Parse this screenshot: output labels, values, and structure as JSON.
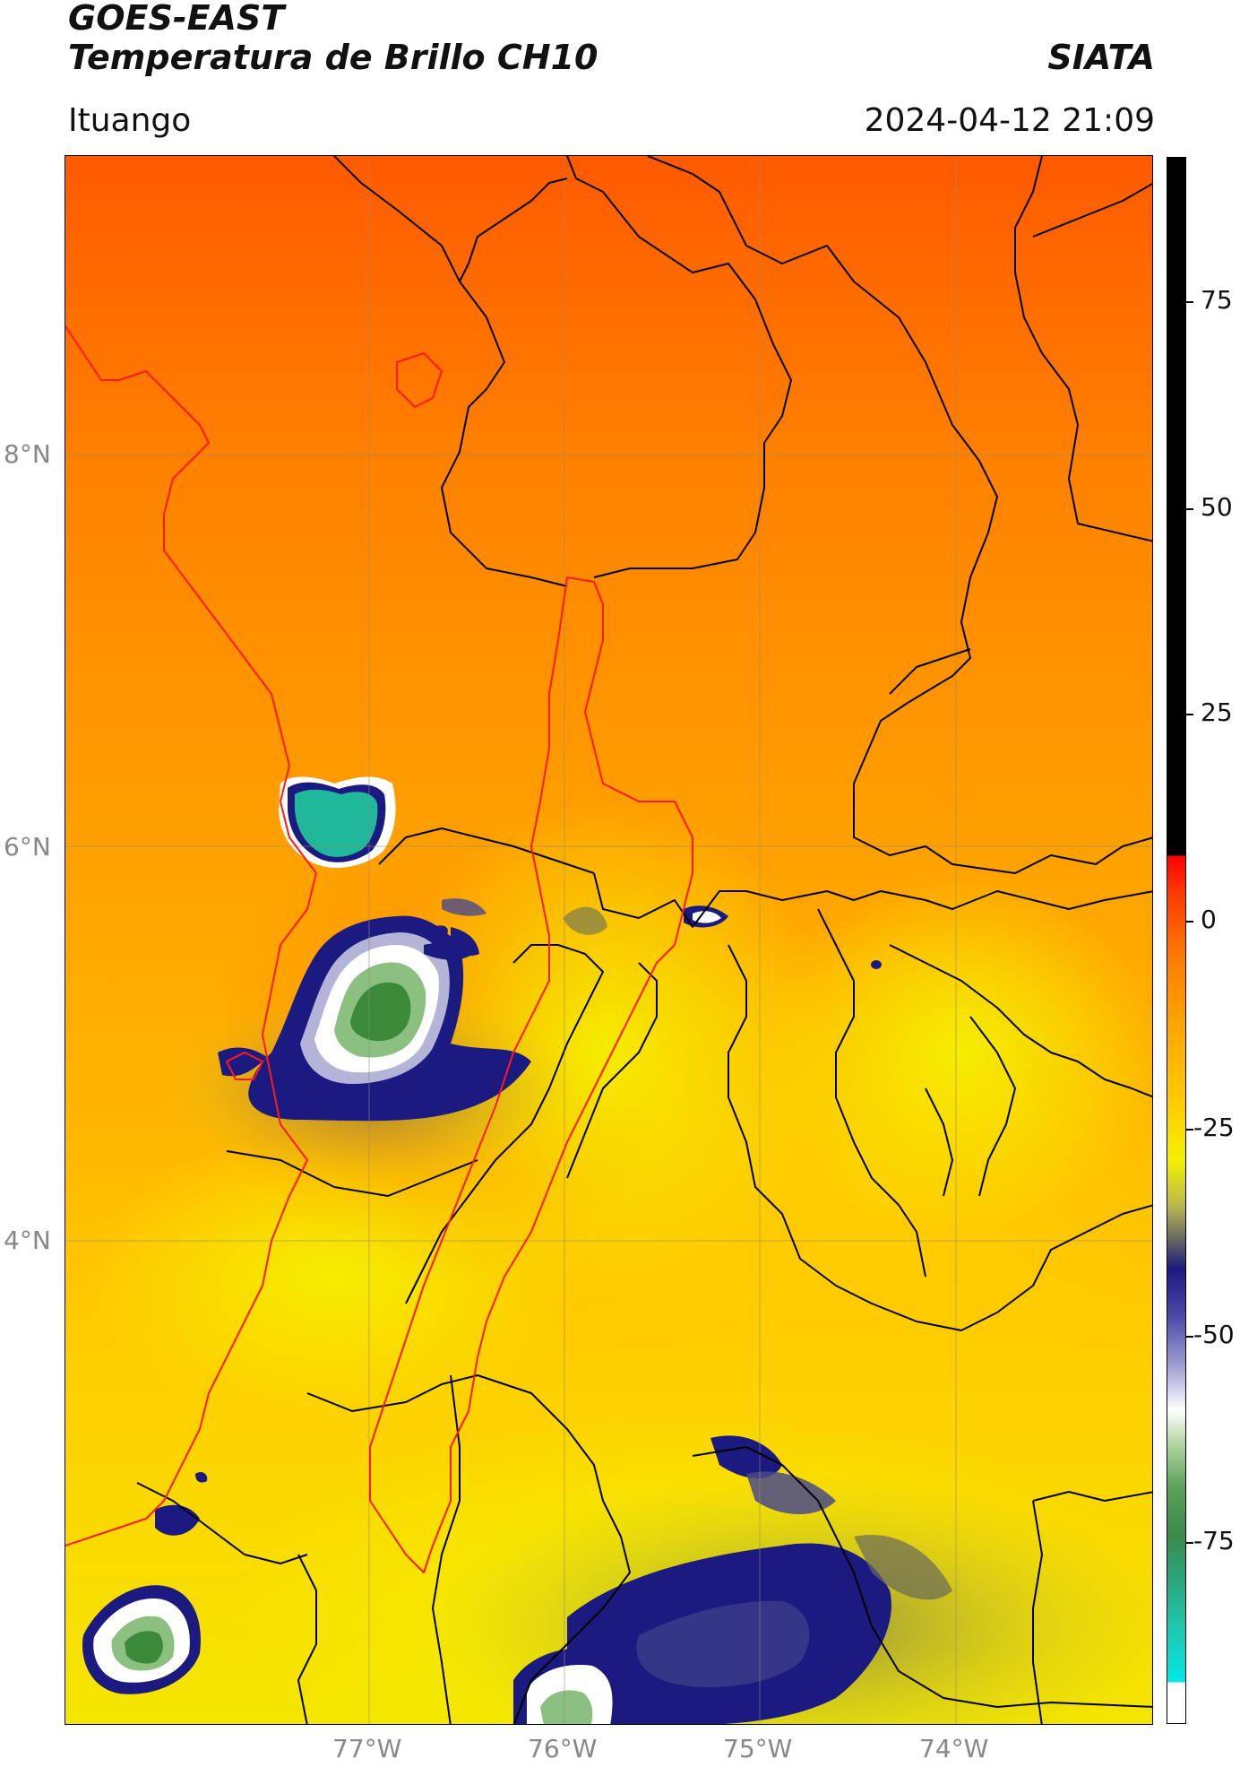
{
  "header": {
    "satellite": "GOES-EAST",
    "product": "Temperatura de Brillo CH10",
    "agency": "SIATA",
    "location": "Ituango",
    "datetime": "2024-04-12 21:09"
  },
  "map": {
    "lat_ticks": [
      {
        "label": "8°N",
        "value": 8
      },
      {
        "label": "6°N",
        "value": 6
      },
      {
        "label": "4°N",
        "value": 4
      }
    ],
    "lon_ticks": [
      {
        "label": "77°W",
        "value": -77
      },
      {
        "label": "76°W",
        "value": -76
      },
      {
        "label": "75°W",
        "value": -75
      },
      {
        "label": "74°W",
        "value": -74
      }
    ],
    "colors": {
      "warm_deep": "#ff5a00",
      "warm": "#ff9a00",
      "mid": "#ffc200",
      "cool": "#f5f000",
      "cold_blue": "#1a1a80",
      "cold_white": "#ffffff",
      "cold_green": "#3a8a3a",
      "teal": "#1fb89a",
      "admin_border": "#000000",
      "basin_border": "#ff1a1a"
    }
  },
  "colorbar": {
    "ticks": [
      "75",
      "50",
      "25",
      "0",
      "-25",
      "-50",
      "-75"
    ],
    "tick_values": [
      75,
      50,
      25,
      0,
      -25,
      -50,
      -75
    ],
    "range": [
      -90,
      90
    ]
  }
}
